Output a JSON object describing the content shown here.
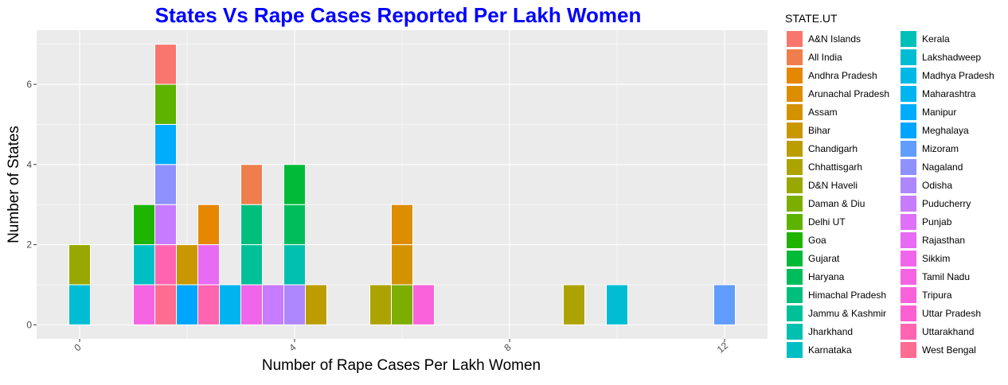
{
  "chart_data": {
    "type": "bar",
    "subtype": "stacked-histogram",
    "title": "States Vs Rape Cases Reported Per Lakh Women",
    "xlabel": "Number of Rape Cases Per Lakh Women",
    "ylabel": "Number of States",
    "x_ticks": [
      0,
      4,
      8,
      12
    ],
    "x_tick_labels": [
      "0",
      "4",
      "8",
      "12"
    ],
    "y_ticks": [
      0,
      2,
      4,
      6
    ],
    "y_tick_labels": [
      "0",
      "2",
      "4",
      "6"
    ],
    "xlim": [
      -0.8,
      12.8
    ],
    "ylim": [
      -0.35,
      7.35
    ],
    "bin_width": 0.4,
    "grid": true,
    "legend_title": "STATE.UT",
    "legend_position": "right",
    "series": [
      {
        "name": "A&N Islands",
        "color": "#F8766D"
      },
      {
        "name": "All India",
        "color": "#F07E4D"
      },
      {
        "name": "Andhra Pradesh",
        "color": "#E58700"
      },
      {
        "name": "Arunachal Pradesh",
        "color": "#DD8D00"
      },
      {
        "name": "Assam",
        "color": "#D39200"
      },
      {
        "name": "Bihar",
        "color": "#C99800"
      },
      {
        "name": "Chandigarh",
        "color": "#BB9D00"
      },
      {
        "name": "Chhattisgarh",
        "color": "#ACA300"
      },
      {
        "name": "D&N Haveli",
        "color": "#99A800"
      },
      {
        "name": "Daman & Diu",
        "color": "#7CAE00"
      },
      {
        "name": "Delhi UT",
        "color": "#5EB300"
      },
      {
        "name": "Goa",
        "color": "#1EB400"
      },
      {
        "name": "Gujarat",
        "color": "#00BA38"
      },
      {
        "name": "Haryana",
        "color": "#00BD5C"
      },
      {
        "name": "Himachal Pradesh",
        "color": "#00BF7D"
      },
      {
        "name": "Jammu & Kashmir",
        "color": "#00C097"
      },
      {
        "name": "Jharkhand",
        "color": "#00C0AF"
      },
      {
        "name": "Karnataka",
        "color": "#00BFC4"
      },
      {
        "name": "Kerala",
        "color": "#00C0B8"
      },
      {
        "name": "Lakshadweep",
        "color": "#00BDD4"
      },
      {
        "name": "Madhya Pradesh",
        "color": "#00B8E5"
      },
      {
        "name": "Maharashtra",
        "color": "#00B4F0"
      },
      {
        "name": "Manipur",
        "color": "#00ACFC"
      },
      {
        "name": "Meghalaya",
        "color": "#00A5FF"
      },
      {
        "name": "Mizoram",
        "color": "#619CFF"
      },
      {
        "name": "Nagaland",
        "color": "#8F91FF"
      },
      {
        "name": "Odisha",
        "color": "#AE87FF"
      },
      {
        "name": "Puducherry",
        "color": "#C77CFF"
      },
      {
        "name": "Punjab",
        "color": "#DE71F9"
      },
      {
        "name": "Rajasthan",
        "color": "#E76BF3"
      },
      {
        "name": "Sikkim",
        "color": "#F066EA"
      },
      {
        "name": "Tamil Nadu",
        "color": "#F564E3"
      },
      {
        "name": "Tripura",
        "color": "#FA62DB"
      },
      {
        "name": "Uttar Pradesh",
        "color": "#FD61D1"
      },
      {
        "name": "Uttarakhand",
        "color": "#FF64B0"
      },
      {
        "name": "West Bengal",
        "color": "#FF6C91"
      }
    ],
    "bins": [
      {
        "x": 0.0,
        "stack": [
          {
            "state": "Lakshadweep",
            "count": 1
          },
          {
            "state": "D&N Haveli",
            "count": 1
          }
        ]
      },
      {
        "x": 1.2,
        "stack": [
          {
            "state": "Tamil Nadu",
            "count": 1
          },
          {
            "state": "Karnataka",
            "count": 1
          },
          {
            "state": "Goa",
            "count": 1
          }
        ]
      },
      {
        "x": 1.6,
        "stack": [
          {
            "state": "West Bengal",
            "count": 1
          },
          {
            "state": "Uttarakhand",
            "count": 1
          },
          {
            "state": "Puducherry",
            "count": 1
          },
          {
            "state": "Nagaland",
            "count": 1
          },
          {
            "state": "Manipur",
            "count": 1
          },
          {
            "state": "Delhi UT",
            "count": 1
          },
          {
            "state": "A&N Islands",
            "count": 1
          }
        ]
      },
      {
        "x": 2.0,
        "stack": [
          {
            "state": "Meghalaya",
            "count": 1
          },
          {
            "state": "Bihar",
            "count": 1
          }
        ]
      },
      {
        "x": 2.4,
        "stack": [
          {
            "state": "Uttarakhand",
            "count": 1
          },
          {
            "state": "Rajasthan",
            "count": 1
          },
          {
            "state": "Andhra Pradesh",
            "count": 1
          }
        ]
      },
      {
        "x": 2.8,
        "stack": [
          {
            "state": "Maharashtra",
            "count": 1
          }
        ]
      },
      {
        "x": 3.2,
        "stack": [
          {
            "state": "Sikkim",
            "count": 1
          },
          {
            "state": "Jammu & Kashmir",
            "count": 1
          },
          {
            "state": "Himachal Pradesh",
            "count": 1
          },
          {
            "state": "All India",
            "count": 1
          }
        ]
      },
      {
        "x": 3.6,
        "stack": [
          {
            "state": "Puducherry",
            "count": 1
          }
        ]
      },
      {
        "x": 4.0,
        "stack": [
          {
            "state": "Odisha",
            "count": 1
          },
          {
            "state": "Jharkhand",
            "count": 1
          },
          {
            "state": "Haryana",
            "count": 1
          },
          {
            "state": "Gujarat",
            "count": 1
          }
        ]
      },
      {
        "x": 4.4,
        "stack": [
          {
            "state": "Chandigarh",
            "count": 1
          }
        ]
      },
      {
        "x": 5.6,
        "stack": [
          {
            "state": "Chhattisgarh",
            "count": 1
          }
        ]
      },
      {
        "x": 6.0,
        "stack": [
          {
            "state": "Daman & Diu",
            "count": 1
          },
          {
            "state": "Assam",
            "count": 1
          },
          {
            "state": "Arunachal Pradesh",
            "count": 1
          }
        ]
      },
      {
        "x": 6.4,
        "stack": [
          {
            "state": "Tripura",
            "count": 1
          }
        ]
      },
      {
        "x": 9.2,
        "stack": [
          {
            "state": "Chhattisgarh",
            "count": 1
          }
        ]
      },
      {
        "x": 10.0,
        "stack": [
          {
            "state": "Lakshadweep",
            "count": 1
          }
        ]
      },
      {
        "x": 12.0,
        "stack": [
          {
            "state": "Mizoram",
            "count": 1
          }
        ]
      }
    ]
  }
}
